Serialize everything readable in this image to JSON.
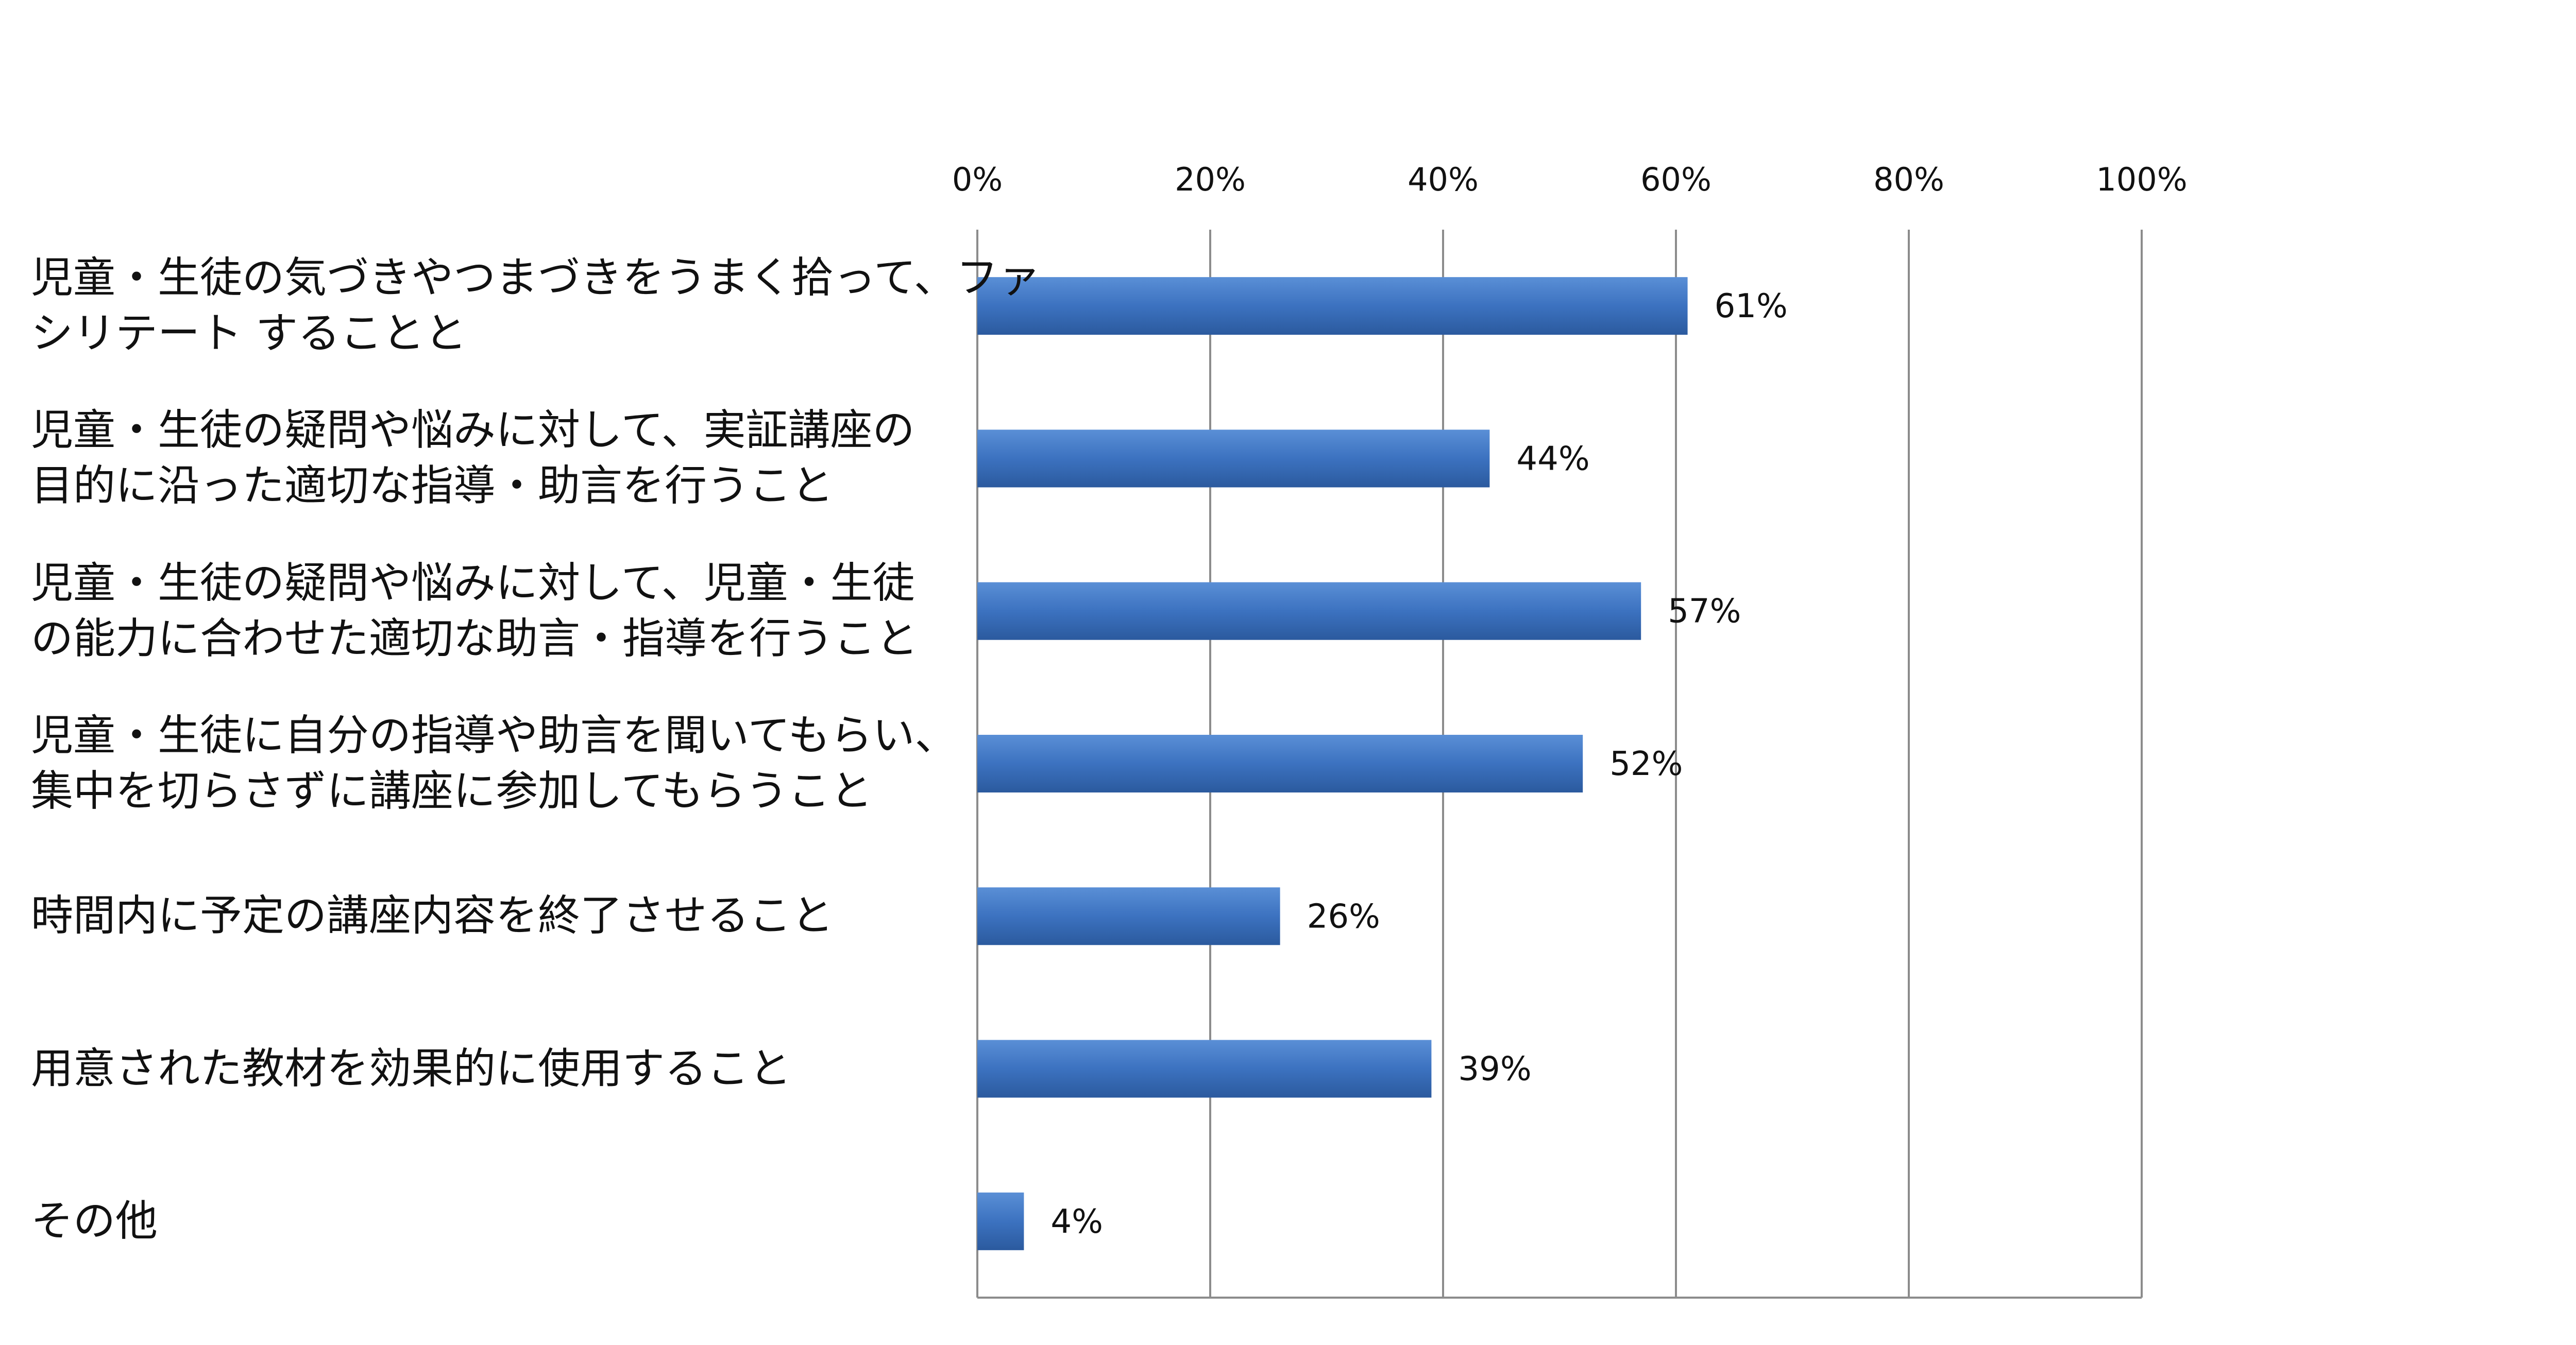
{
  "chart_data": {
    "type": "bar",
    "orientation": "horizontal",
    "title": "",
    "xlabel": "",
    "ylabel": "",
    "xlim": [
      0,
      100
    ],
    "tick_labels": [
      "0%",
      "20%",
      "40%",
      "60%",
      "80%",
      "100%"
    ],
    "grid": true,
    "legend": "none",
    "bar_color": "#3C72C0",
    "categories": [
      [
        "児童・生徒の気づきやつまづきをうまく拾って、ファ",
        "シリテート することと"
      ],
      [
        "児童・生徒の疑問や悩みに対して、実証講座の",
        "目的に沿った適切な指導・助言を行うこと"
      ],
      [
        "児童・生徒の疑問や悩みに対して、児童・生徒",
        "の能力に合わせた適切な助言・指導を行うこと"
      ],
      [
        "児童・生徒に自分の指導や助言を聞いてもらい、",
        "集中を切らさずに講座に参加してもらうこと"
      ],
      [
        "時間内に予定の講座内容を終了させること"
      ],
      [
        "用意された教材を効果的に使用すること"
      ],
      [
        "その他"
      ]
    ],
    "values": [
      61,
      44,
      57,
      52,
      26,
      39,
      4
    ],
    "data_labels": [
      "61%",
      "44%",
      "57%",
      "52%",
      "26%",
      "39%",
      "4%"
    ]
  }
}
